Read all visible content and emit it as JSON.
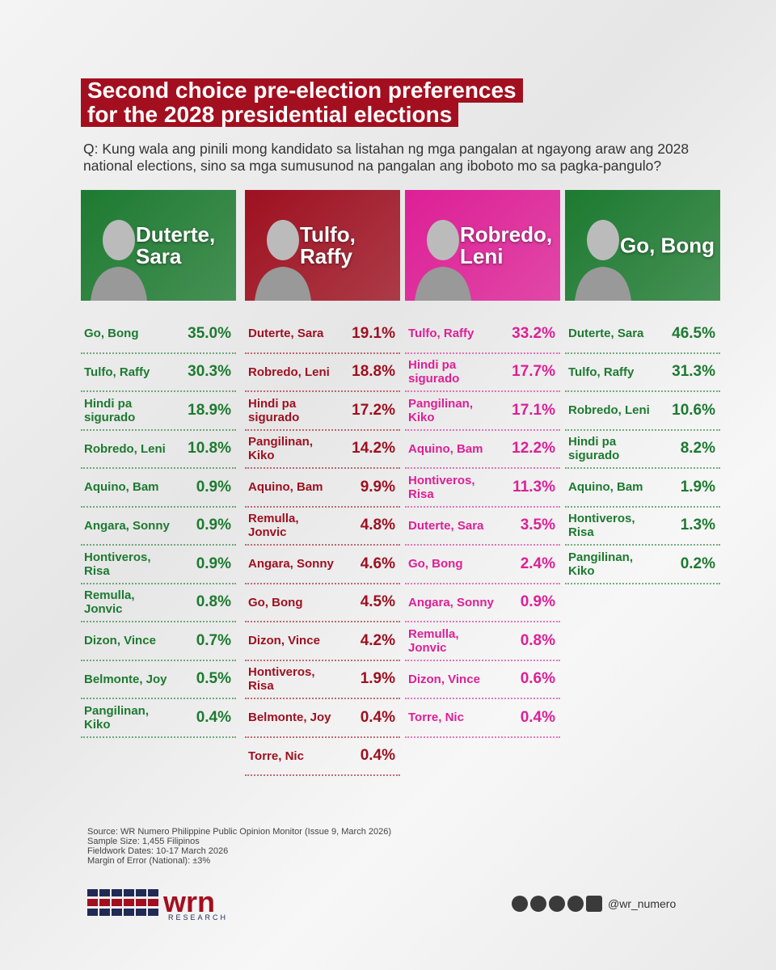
{
  "header": {
    "title_lines": [
      "Second choice pre-election preferences",
      "for the 2028 presidential elections"
    ],
    "question": "Q: Kung wala ang pinili mong kandidato sa listahan ng mga pangalan at ngayong araw ang 2028 national elections, sino sa mga sumusunod na pangalan ang iboboto mo sa pagka-pangulo?"
  },
  "columns": [
    {
      "candidate": "Duterte, Sara",
      "color": "#1d7a30",
      "rows": [
        {
          "name": "Go, Bong",
          "value": "35.0%"
        },
        {
          "name": "Tulfo, Raffy",
          "value": "30.3%"
        },
        {
          "name": "Hindi pa sigurado",
          "value": "18.9%"
        },
        {
          "name": "Robredo, Leni",
          "value": "10.8%"
        },
        {
          "name": "Aquino, Bam",
          "value": "0.9%"
        },
        {
          "name": "Angara, Sonny",
          "value": "0.9%"
        },
        {
          "name": "Hontiveros, Risa",
          "value": "0.9%"
        },
        {
          "name": "Remulla, Jonvic",
          "value": "0.8%"
        },
        {
          "name": "Dizon, Vince",
          "value": "0.7%"
        },
        {
          "name": "Belmonte, Joy",
          "value": "0.5%"
        },
        {
          "name": "Pangilinan, Kiko",
          "value": "0.4%"
        }
      ]
    },
    {
      "candidate": "Tulfo, Raffy",
      "color": "#9e1020",
      "rows": [
        {
          "name": "Duterte, Sara",
          "value": "19.1%"
        },
        {
          "name": "Robredo, Leni",
          "value": "18.8%"
        },
        {
          "name": "Hindi pa sigurado",
          "value": "17.2%"
        },
        {
          "name": "Pangilinan, Kiko",
          "value": "14.2%"
        },
        {
          "name": "Aquino, Bam",
          "value": "9.9%"
        },
        {
          "name": "Remulla, Jonvic",
          "value": "4.8%"
        },
        {
          "name": "Angara, Sonny",
          "value": "4.6%"
        },
        {
          "name": "Go, Bong",
          "value": "4.5%"
        },
        {
          "name": "Dizon, Vince",
          "value": "4.2%"
        },
        {
          "name": "Hontiveros, Risa",
          "value": "1.9%"
        },
        {
          "name": "Belmonte, Joy",
          "value": "0.4%"
        },
        {
          "name": "Torre, Nic",
          "value": "0.4%"
        }
      ]
    },
    {
      "candidate": "Robredo, Leni",
      "color": "#de1f96",
      "rows": [
        {
          "name": "Tulfo, Raffy",
          "value": "33.2%"
        },
        {
          "name": "Hindi pa sigurado",
          "value": "17.7%"
        },
        {
          "name": "Pangilinan, Kiko",
          "value": "17.1%"
        },
        {
          "name": "Aquino, Bam",
          "value": "12.2%"
        },
        {
          "name": "Hontiveros, Risa",
          "value": "11.3%"
        },
        {
          "name": "Duterte, Sara",
          "value": "3.5%"
        },
        {
          "name": "Go, Bong",
          "value": "2.4%"
        },
        {
          "name": "Angara, Sonny",
          "value": "0.9%"
        },
        {
          "name": "Remulla, Jonvic",
          "value": "0.8%"
        },
        {
          "name": "Dizon, Vince",
          "value": "0.6%"
        },
        {
          "name": "Torre, Nic",
          "value": "0.4%"
        }
      ]
    },
    {
      "candidate": "Go, Bong",
      "color": "#1d7a30",
      "rows": [
        {
          "name": "Duterte, Sara",
          "value": "46.5%"
        },
        {
          "name": "Tulfo, Raffy",
          "value": "31.3%"
        },
        {
          "name": "Robredo, Leni",
          "value": "10.6%"
        },
        {
          "name": "Hindi pa sigurado",
          "value": "8.2%"
        },
        {
          "name": "Aquino, Bam",
          "value": "1.9%"
        },
        {
          "name": "Hontiveros, Risa",
          "value": "1.3%"
        },
        {
          "name": "Pangilinan, Kiko",
          "value": "0.2%"
        }
      ]
    }
  ],
  "footer": {
    "source_lines": [
      "Source: WR Numero Philippine Public Opinion Monitor (Issue 9, March 2026)",
      "Sample Size: 1,455 Filipinos",
      "Fieldwork Dates: 10-17 March 2026",
      "Margin of Error (National): ±3%"
    ],
    "logo": "wrn",
    "logo_sub": "RESEARCH",
    "handle": "@wr_numero"
  }
}
